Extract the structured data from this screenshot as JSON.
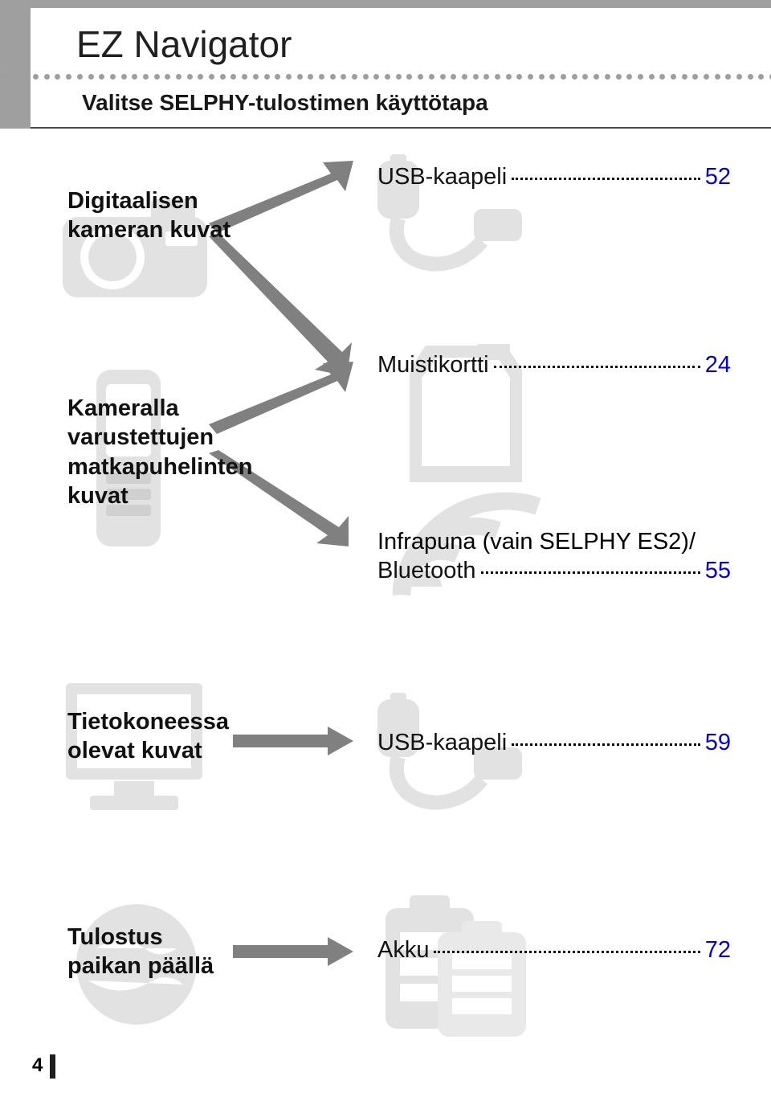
{
  "header": {
    "title": "EZ Navigator",
    "subtitle": "Valitse SELPHY-tulostimen käyttötapa"
  },
  "page_number": "4",
  "colors": {
    "header_band": "#9f9f9f",
    "divider": "#4a4a4a",
    "dot": "#9e9e9e",
    "page_link": "#0000d6",
    "bg_shape": "#e2e2e2",
    "arrow": "#808080"
  },
  "sources": [
    {
      "label": "Digitaalisen\nkameran kuvat"
    },
    {
      "label": "Kameralla\nvarustettujen\nmatkapuhelinten\nkuvat"
    },
    {
      "label": "Tietokoneessa\nolevat kuvat"
    },
    {
      "label": "Tulostus\npaikan päällä"
    }
  ],
  "targets": [
    {
      "name": "USB-kaapeli",
      "page": "52"
    },
    {
      "name": "Muistikortti",
      "page": "24"
    },
    {
      "name_line1": "Infrapuna (vain SELPHY ES2)/",
      "name": "Bluetooth",
      "page": "55"
    },
    {
      "name": "USB-kaapeli",
      "page": "59"
    },
    {
      "name": "Akku",
      "page": "72"
    }
  ]
}
